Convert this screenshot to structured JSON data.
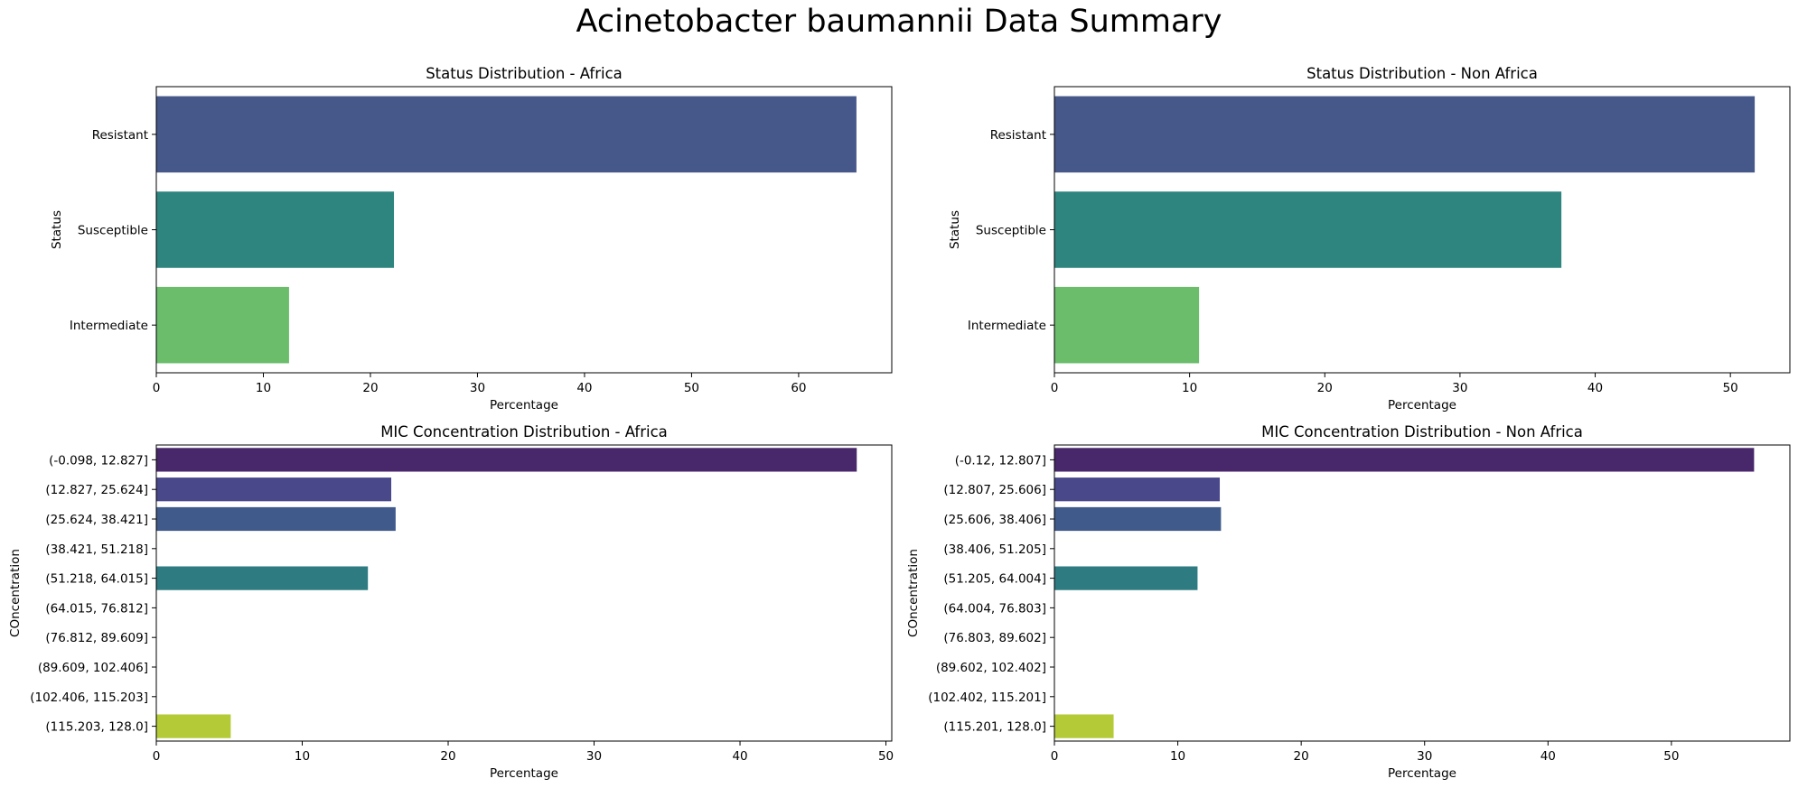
{
  "figure": {
    "title": "Acinetobacter baumannii Data Summary"
  },
  "chart_data": [
    {
      "type": "bar",
      "orientation": "horizontal",
      "title": "Status Distribution - Africa",
      "xlabel": "Percentage",
      "ylabel": "Status",
      "categories": [
        "Resistant",
        "Susceptible",
        "Intermediate"
      ],
      "values": [
        65.4,
        22.2,
        12.4
      ],
      "colors": [
        "#46578a",
        "#2e857f",
        "#6bbd6c"
      ],
      "xlim": [
        0,
        68.7
      ],
      "xticks": [
        "0",
        "10",
        "20",
        "30",
        "40",
        "50",
        "60"
      ],
      "xtick_values": [
        0,
        10,
        20,
        30,
        40,
        50,
        60
      ],
      "grid": false
    },
    {
      "type": "bar",
      "orientation": "horizontal",
      "title": "Status Distribution - Non Africa",
      "xlabel": "Percentage",
      "ylabel": "Status",
      "categories": [
        "Resistant",
        "Susceptible",
        "Intermediate"
      ],
      "values": [
        51.8,
        37.5,
        10.7
      ],
      "colors": [
        "#46578a",
        "#2e857f",
        "#6bbd6c"
      ],
      "xlim": [
        0,
        54.4
      ],
      "xticks": [
        "0",
        "10",
        "20",
        "30",
        "40",
        "50"
      ],
      "xtick_values": [
        0,
        10,
        20,
        30,
        40,
        50
      ],
      "grid": false
    },
    {
      "type": "bar",
      "orientation": "horizontal",
      "title": "MIC Concentration Distribution - Africa",
      "xlabel": "Percentage",
      "ylabel": "COncentration",
      "categories": [
        "(-0.098, 12.827]",
        "(12.827, 25.624]",
        "(25.624, 38.421]",
        "(38.421, 51.218]",
        "(51.218, 64.015]",
        "(64.015, 76.812]",
        "(76.812, 89.609]",
        "(89.609, 102.406]",
        "(102.406, 115.203]",
        "(115.203, 128.0]"
      ],
      "values": [
        48.0,
        16.1,
        16.4,
        0,
        14.5,
        0,
        0,
        0,
        0,
        5.1
      ],
      "colors": [
        "#48276a",
        "#49488a",
        "#3f5a8b",
        "#34718c",
        "#2f7b82",
        "#2a8b82",
        "#35a57a",
        "#66bb6a",
        "#9bc544",
        "#b4ca36"
      ],
      "xlim": [
        0,
        50.4
      ],
      "xticks": [
        "0",
        "10",
        "20",
        "30",
        "40",
        "50"
      ],
      "xtick_values": [
        0,
        10,
        20,
        30,
        40,
        50
      ],
      "grid": false
    },
    {
      "type": "bar",
      "orientation": "horizontal",
      "title": "MIC Concentration Distribution - Non Africa",
      "xlabel": "Percentage",
      "ylabel": "COncentration",
      "categories": [
        "(-0.12, 12.807]",
        "(12.807, 25.606]",
        "(25.606, 38.406]",
        "(38.406, 51.205]",
        "(51.205, 64.004]",
        "(64.004, 76.803]",
        "(76.803, 89.602]",
        "(89.602, 102.402]",
        "(102.402, 115.201]",
        "(115.201, 128.0]"
      ],
      "values": [
        56.7,
        13.4,
        13.5,
        0,
        11.6,
        0,
        0,
        0,
        0,
        4.8
      ],
      "colors": [
        "#48276a",
        "#49488a",
        "#3f5a8b",
        "#34718c",
        "#2f7b82",
        "#2a8b82",
        "#35a57a",
        "#66bb6a",
        "#9bc544",
        "#b4ca36"
      ],
      "xlim": [
        0,
        59.6
      ],
      "xticks": [
        "0",
        "10",
        "20",
        "30",
        "40",
        "50"
      ],
      "xtick_values": [
        0,
        10,
        20,
        30,
        40,
        50
      ],
      "grid": false
    }
  ]
}
